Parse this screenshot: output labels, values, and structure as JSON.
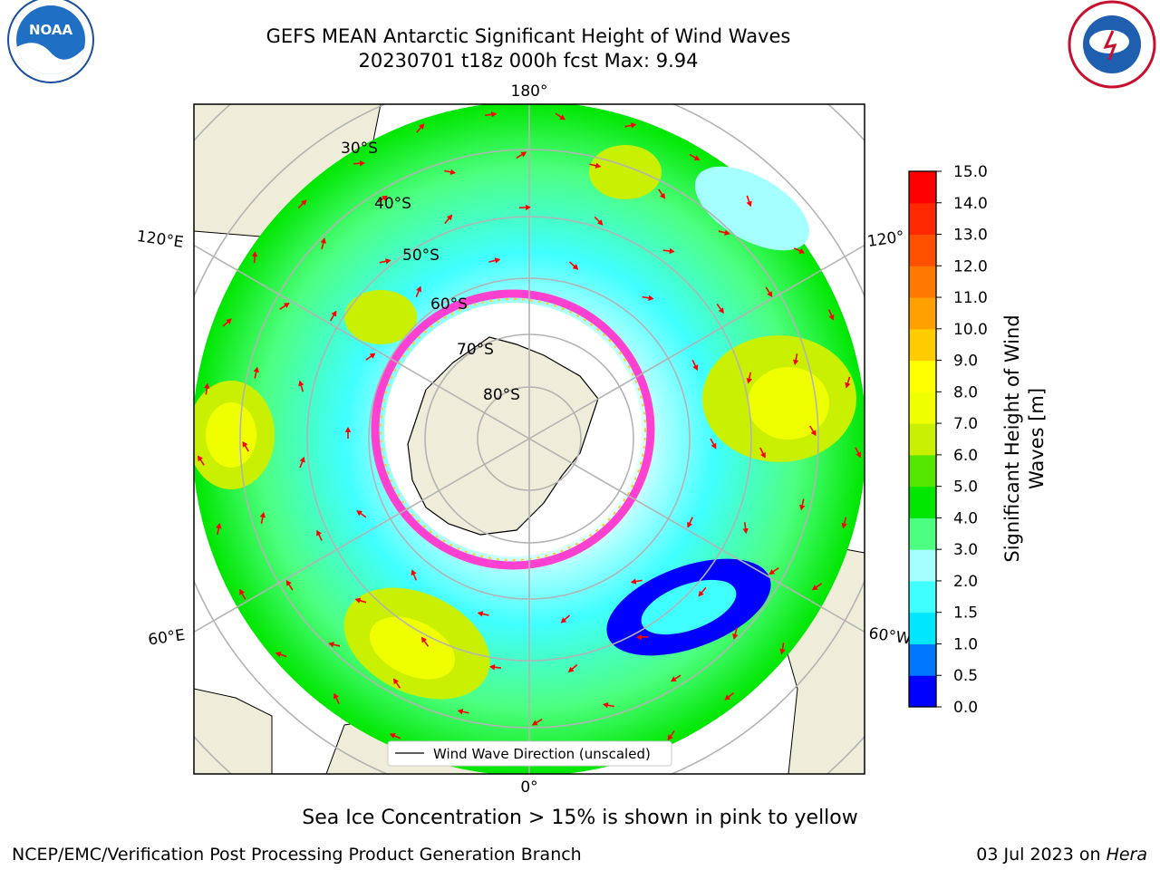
{
  "header": {
    "title_line1": "GEFS MEAN Antarctic Significant Height of Wind Waves",
    "title_line2": "20230701 t18z 000h fcst   Max: 9.94"
  },
  "logos": {
    "left": "NOAA",
    "right": "NATIONAL WEATHER SERVICE"
  },
  "map": {
    "projection": "south-polar-stereographic",
    "lon_labels": {
      "top": "180°",
      "bottom": "0°",
      "upper_left": "120°E",
      "upper_right": "120°",
      "lower_left": "60°E",
      "lower_right": "60°W"
    },
    "lat_labels": [
      "30°S",
      "40°S",
      "50°S",
      "60°S",
      "70°S",
      "80°S"
    ],
    "legend_label": "Wind Wave Direction (unscaled)",
    "colors": {
      "land": "#efedd9",
      "grid": "#b3b3b3",
      "arrow": "#ff0000",
      "ice_pink": "#ff40d0",
      "ice_yellow": "#ffd020"
    }
  },
  "colorbar": {
    "label": "Significant Height of Wind Waves [m]",
    "label_line1": "Significant Height of Wind",
    "label_line2": "Waves [m]",
    "ticks": [
      "0.0",
      "0.5",
      "1.0",
      "1.5",
      "2.0",
      "3.0",
      "4.0",
      "5.0",
      "6.0",
      "7.0",
      "8.0",
      "9.0",
      "10.0",
      "11.0",
      "12.0",
      "13.0",
      "14.0",
      "15.0"
    ],
    "colors": [
      "#0000ff",
      "#0077ff",
      "#00e6ff",
      "#40ffff",
      "#a6ffff",
      "#4dff80",
      "#00e600",
      "#55e600",
      "#c8f000",
      "#f0ff00",
      "#ffff00",
      "#ffcc00",
      "#ffa000",
      "#ff7800",
      "#ff5000",
      "#ff2800",
      "#ff0000"
    ]
  },
  "footer": {
    "note": "Sea Ice Concentration > 15% is shown in pink to yellow",
    "left": "NCEP/EMC/Verification Post Processing Product Generation Branch",
    "right_date": "03 Jul 2023 on",
    "right_host": "Hera"
  }
}
